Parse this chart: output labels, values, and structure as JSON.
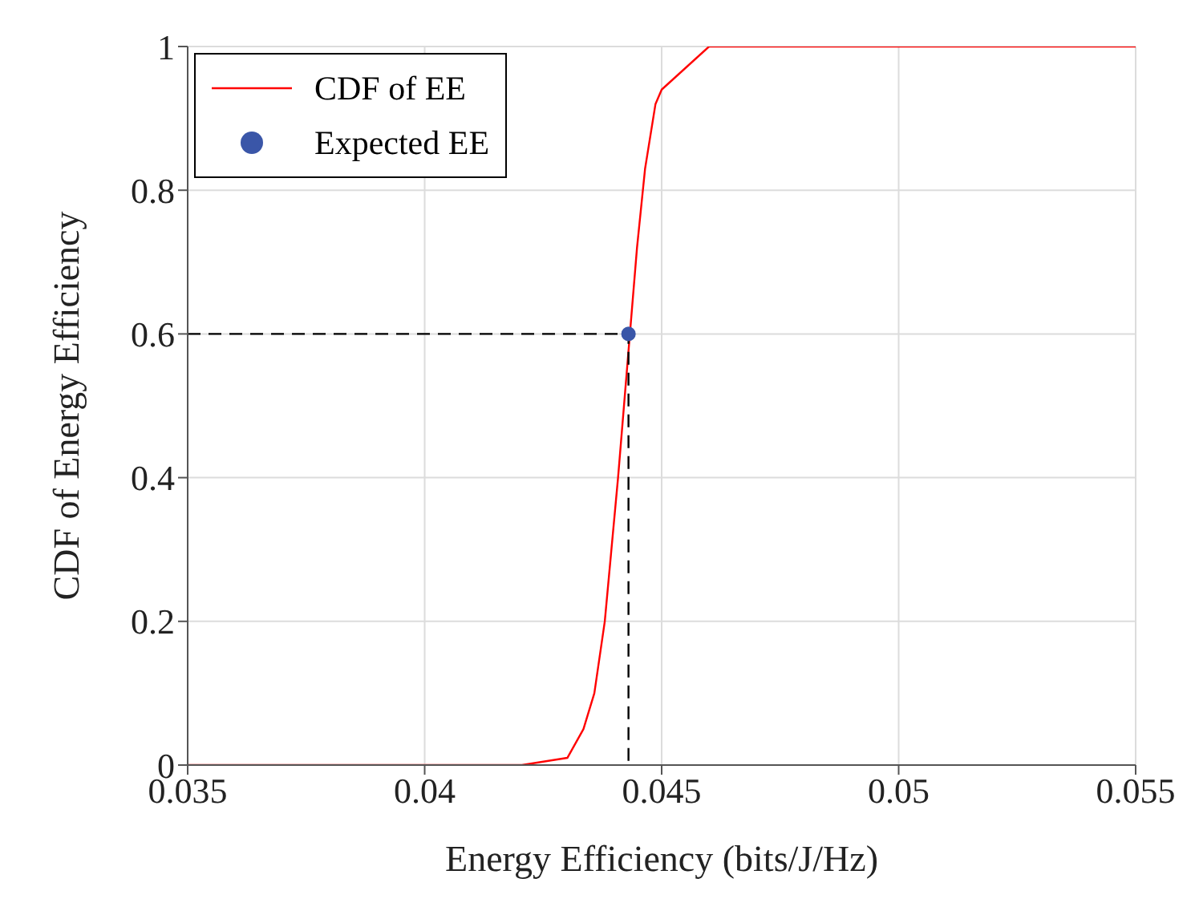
{
  "chart_data": {
    "type": "line",
    "xlabel": "Energy Efficiency (bits/J/Hz)",
    "ylabel": "CDF of Energy Efficiency",
    "xlim": [
      0.035,
      0.055
    ],
    "xticks": [
      0.035,
      0.04,
      0.045,
      0.05,
      0.055
    ],
    "ylim": [
      0,
      1
    ],
    "yticks": [
      0,
      0.2,
      0.4,
      0.6,
      0.8,
      1
    ],
    "grid": true,
    "legend": "top left",
    "series": [
      {
        "name": "CDF of EE",
        "color": "#ff0000",
        "line_style": "solid",
        "marker": "none",
        "x": [
          0.035,
          0.04205,
          0.04301,
          0.04335,
          0.04358,
          0.0438,
          0.04408,
          0.04448,
          0.04465,
          0.04487,
          0.045,
          0.046,
          0.055
        ],
        "values": [
          0,
          0,
          0.01,
          0.05,
          0.1,
          0.2,
          0.4,
          0.72,
          0.83,
          0.92,
          0.94,
          1,
          1
        ]
      },
      {
        "name": "Expected EE",
        "type": "scatter",
        "color": "#3a56a8",
        "marker": "circle",
        "x": [
          0.0443
        ],
        "values": [
          0.6
        ]
      },
      {
        "type": "line",
        "color": "#000000",
        "line_style": "dashed",
        "marker": "none",
        "x": [
          0.035,
          0.0443,
          0.0443
        ],
        "values": [
          0.6,
          0.6,
          0
        ]
      }
    ]
  }
}
